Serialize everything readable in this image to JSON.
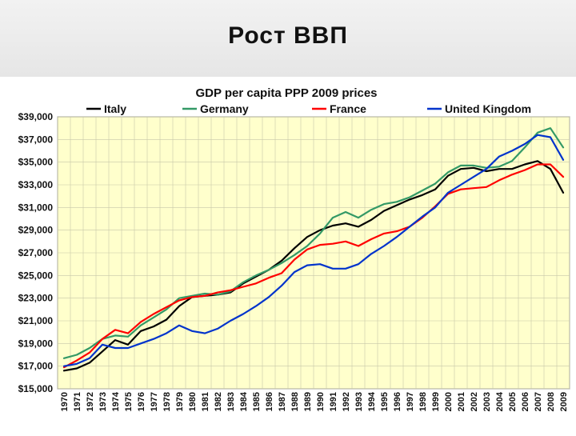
{
  "slide": {
    "title": "Рост ВВП"
  },
  "chart_data": {
    "type": "line",
    "title": "GDP per capita PPP 2009 prices",
    "xlabel": "",
    "ylabel": "",
    "ylim": [
      15000,
      39000
    ],
    "yticks": [
      15000,
      17000,
      19000,
      21000,
      23000,
      25000,
      27000,
      29000,
      31000,
      33000,
      35000,
      37000,
      39000
    ],
    "ytick_labels": [
      "$15,000",
      "$17,000",
      "$19,000",
      "$21,000",
      "$23,000",
      "$25,000",
      "$27,000",
      "$29,000",
      "$31,000",
      "$33,000",
      "$35,000",
      "$37,000",
      "$39,000"
    ],
    "grid": true,
    "legend_position": "top",
    "background_color": "#ffffcc",
    "x": [
      "1970",
      "1971",
      "1972",
      "1973",
      "1974",
      "1975",
      "1976",
      "1977",
      "1978",
      "1979",
      "1980",
      "1981",
      "1982",
      "1983",
      "1984",
      "1985",
      "1986",
      "1987",
      "1988",
      "1989",
      "1990",
      "1991",
      "1992",
      "1993",
      "1994",
      "1995",
      "1996",
      "1997",
      "1998",
      "1999",
      "2000",
      "2001",
      "2002",
      "2003",
      "2004",
      "2005",
      "2006",
      "2007",
      "2008",
      "2009"
    ],
    "series": [
      {
        "name": "Italy",
        "color": "#000000",
        "values": [
          16600,
          16800,
          17300,
          18300,
          19300,
          18900,
          20100,
          20500,
          21100,
          22300,
          23100,
          23200,
          23300,
          23500,
          24300,
          24900,
          25500,
          26300,
          27400,
          28400,
          29000,
          29400,
          29600,
          29300,
          29900,
          30700,
          31200,
          31700,
          32100,
          32600,
          33800,
          34400,
          34500,
          34200,
          34400,
          34400,
          34800,
          35100,
          34400,
          32300
        ]
      },
      {
        "name": "Germany",
        "color": "#339966",
        "values": [
          17700,
          18000,
          18600,
          19400,
          19700,
          19600,
          20600,
          21300,
          22000,
          23000,
          23200,
          23400,
          23300,
          23600,
          24400,
          25000,
          25500,
          26100,
          26800,
          27600,
          28700,
          30100,
          30600,
          30100,
          30800,
          31300,
          31500,
          31900,
          32500,
          33100,
          34100,
          34700,
          34700,
          34500,
          34600,
          35100,
          36300,
          37600,
          38000,
          36300
        ]
      },
      {
        "name": "France",
        "color": "#ff0000",
        "values": [
          16900,
          17500,
          18200,
          19400,
          20200,
          19900,
          20900,
          21600,
          22200,
          22800,
          23100,
          23200,
          23500,
          23700,
          24000,
          24300,
          24800,
          25200,
          26400,
          27300,
          27700,
          27800,
          28000,
          27600,
          28200,
          28700,
          28900,
          29300,
          30100,
          31100,
          32200,
          32600,
          32700,
          32800,
          33400,
          33900,
          34300,
          34800,
          34800,
          33700
        ]
      },
      {
        "name": "United Kingdom",
        "color": "#0033cc",
        "values": [
          17000,
          17200,
          17700,
          18900,
          18600,
          18600,
          19000,
          19400,
          19900,
          20600,
          20100,
          19900,
          20300,
          21000,
          21600,
          22300,
          23100,
          24100,
          25300,
          25900,
          26000,
          25600,
          25600,
          26000,
          26900,
          27600,
          28400,
          29300,
          30200,
          31000,
          32300,
          33000,
          33700,
          34400,
          35500,
          36000,
          36600,
          37400,
          37200,
          35200
        ]
      }
    ]
  }
}
